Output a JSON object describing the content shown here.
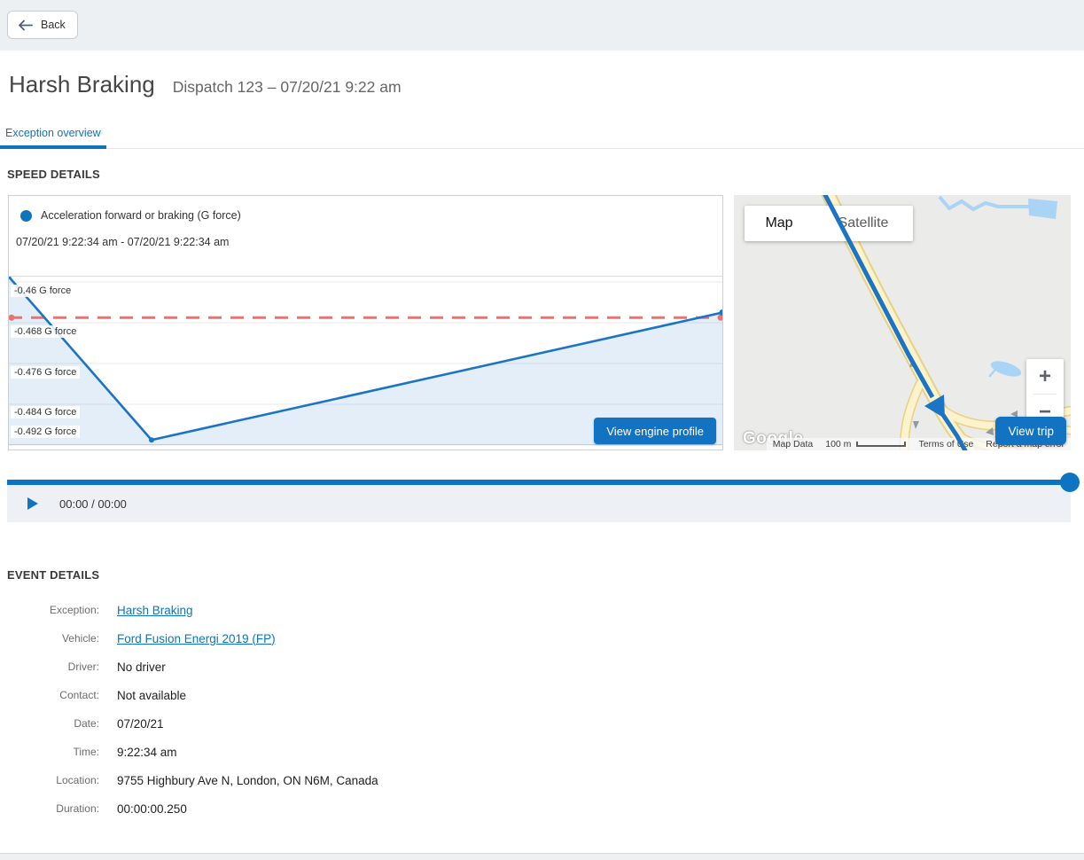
{
  "header": {
    "back_label": "Back"
  },
  "title": {
    "main": "Harsh Braking",
    "subtitle": "Dispatch 123 – 07/20/21 9:22 am"
  },
  "tabs": [
    {
      "label": "Exception overview",
      "active": true
    }
  ],
  "speed_details": {
    "heading": "SPEED DETAILS",
    "legend": "Acceleration forward or braking (G force)",
    "date_range": "07/20/21 9:22:34 am - 07/20/21 9:22:34 am",
    "button": "View engine profile"
  },
  "chart_data": {
    "type": "area",
    "title": "Acceleration forward or braking (G force)",
    "time_range": "07/20/21 9:22:34 am - 07/20/21 9:22:34 am",
    "x_unit": "fraction_of_event",
    "y_ticks": [
      "-0.46 G force",
      "-0.468 G force",
      "-0.476 G force",
      "-0.484 G force",
      "-0.492 G force"
    ],
    "y_tick_values": [
      -0.46,
      -0.468,
      -0.476,
      -0.484,
      -0.492
    ],
    "y_ref": -0.46,
    "y_step": 0.008,
    "ylim": [
      -0.493,
      -0.4585
    ],
    "threshold": -0.467,
    "grid": true,
    "legend_position": "top-left",
    "series": [
      {
        "name": "Acceleration forward or braking (G force)",
        "points": [
          {
            "x": 0.0,
            "y": -0.459
          },
          {
            "x": 0.2,
            "y": -0.491
          },
          {
            "x": 1.0,
            "y": -0.466
          }
        ]
      }
    ]
  },
  "map": {
    "map_button": "Map",
    "satellite_button": "Satellite",
    "view_trip_button": "View trip",
    "zoom_in": "+",
    "zoom_out": "−",
    "google_logo": "Google",
    "attribution": {
      "map_data": "Map Data",
      "scale": "100 m",
      "terms": "Terms of Use",
      "report": "Report a map error"
    }
  },
  "playback": {
    "time": "00:00 / 00:00",
    "progress": 1
  },
  "event_details": {
    "heading": "EVENT DETAILS",
    "rows": [
      {
        "label": "Exception:",
        "value": "Harsh Braking",
        "link": true
      },
      {
        "label": "Vehicle:",
        "value": "Ford Fusion Energi 2019 (FP)",
        "link": true
      },
      {
        "label": "Driver:",
        "value": "No driver",
        "link": false
      },
      {
        "label": "Contact:",
        "value": "Not available",
        "link": false
      },
      {
        "label": "Date:",
        "value": "07/20/21",
        "link": false
      },
      {
        "label": "Time:",
        "value": "9:22:34 am",
        "link": false
      },
      {
        "label": "Location:",
        "value": "9755 Highbury Ave N, London, ON N6M, Canada",
        "link": false
      },
      {
        "label": "Duration:",
        "value": "00:00:00.250",
        "link": false
      }
    ]
  },
  "colors": {
    "accent": "#1074bc",
    "button_blue": "#1273c2",
    "progress_blue": "#0d74c4",
    "chart_line": "#1b74c6",
    "chart_fill": "rgba(27,116,198,0.12)",
    "threshold_red": "#ee7171",
    "water_blue": "#a9d4f5",
    "road_fill": "#fcf3cd",
    "road_edge": "#e9d183",
    "map_land": "#ebebe9"
  }
}
